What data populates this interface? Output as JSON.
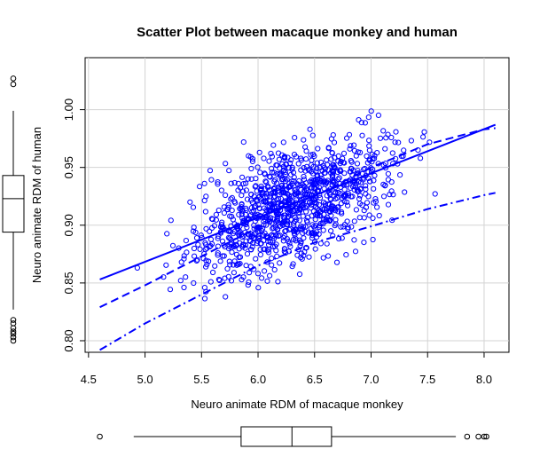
{
  "chart_data": {
    "type": "scatter",
    "title": "Scatter Plot between macaque monkey and human",
    "xlabel": "Neuro animate RDM of macaque monkey",
    "ylabel": "Neuro animate RDM of human",
    "xlim": [
      4.47,
      8.22
    ],
    "ylim": [
      0.79,
      1.045
    ],
    "xticks": [
      "4.5",
      "5.0",
      "5.5",
      "6.0",
      "6.5",
      "7.0",
      "7.5",
      "8.0"
    ],
    "yticks": [
      "0.80",
      "0.85",
      "0.90",
      "0.95",
      "1.00"
    ],
    "grid": true,
    "point_color": "#0000ff",
    "regression_line": {
      "x": [
        4.6,
        8.1
      ],
      "y": [
        0.853,
        0.987
      ]
    },
    "smooth_line": {
      "x": [
        4.6,
        5.0,
        5.5,
        6.0,
        6.5,
        7.0,
        7.5,
        8.0,
        8.1
      ],
      "y": [
        0.853,
        0.867,
        0.886,
        0.905,
        0.925,
        0.945,
        0.962,
        0.978,
        0.982
      ]
    },
    "upper_band": {
      "x": [
        4.6,
        5.0,
        5.5,
        6.0,
        6.5,
        7.0,
        7.5,
        8.0,
        8.1
      ],
      "y": [
        0.829,
        0.848,
        0.873,
        0.898,
        0.925,
        0.95,
        0.97,
        0.983,
        0.984
      ]
    },
    "lower_band": {
      "x": [
        4.6,
        5.0,
        5.5,
        6.0,
        6.5,
        7.0,
        7.5,
        8.0,
        8.1
      ],
      "y": [
        0.792,
        0.815,
        0.84,
        0.865,
        0.885,
        0.899,
        0.914,
        0.926,
        0.928
      ]
    },
    "x_boxplot": {
      "min": 4.9,
      "q1": 5.85,
      "median": 6.3,
      "q3": 6.65,
      "max": 7.75,
      "outliers": [
        4.6,
        7.85,
        7.95,
        8.0,
        8.02
      ]
    },
    "y_boxplot": {
      "min": 0.827,
      "q1": 0.894,
      "median": 0.923,
      "q3": 0.943,
      "max": 0.999,
      "outliers": [
        0.8,
        0.803,
        0.806,
        0.808,
        0.811,
        0.815,
        0.818,
        1.022,
        1.027
      ]
    },
    "point_count": 1100
  }
}
